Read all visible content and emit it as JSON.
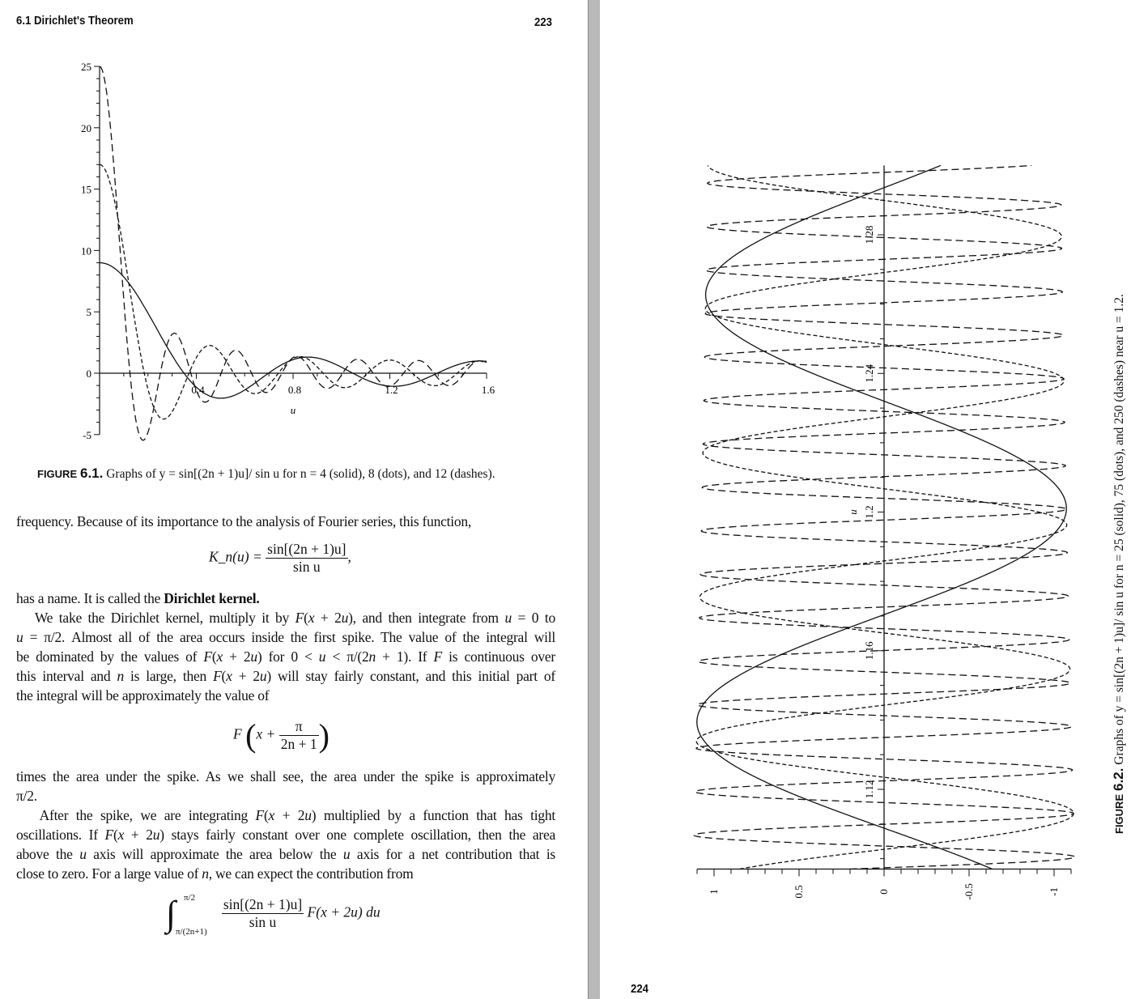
{
  "left_page": {
    "header_title": "6.1  Dirichlet's Theorem",
    "page_number": "223",
    "figure_caption": {
      "label": "FIGURE",
      "number": "6.1.",
      "text": "Graphs of y = sin[(2n + 1)u]/ sin u for n = 4 (solid), 8 (dots), and 12 (dashes)."
    },
    "lines": [
      {
        "html": "frequency. Because of its importance to the analysis of Fourier series, this function,",
        "justify": false
      },
      {
        "html": "has a name. It is called the <b>Dirichlet kernel.</b>",
        "justify": false
      },
      {
        "html": "&nbsp;&nbsp;&nbsp;We take the Dirichlet kernel, multiply it by <i>F</i>(<i>x</i> + 2<i>u</i>), and then integrate from <i>u</i> = 0 to",
        "justify": true
      },
      {
        "html": "<i>u</i> = π/2. Almost all of the area occurs inside the first spike. The value of the integral will",
        "justify": true
      },
      {
        "html": "be dominated by the values of <i>F</i>(<i>x</i> + 2<i>u</i>) for 0 &lt; <i>u</i> &lt; π/(2<i>n</i> + 1). If <i>F</i> is continuous over",
        "justify": true
      },
      {
        "html": "this interval and <i>n</i> is large, then <i>F</i>(<i>x</i> + 2<i>u</i>) will stay fairly constant, and this initial part of",
        "justify": true
      },
      {
        "html": "the integral will be approximately the value of",
        "justify": false
      },
      {
        "html": "times the area under the spike. As we shall see, the area under the spike is approximately",
        "justify": true
      },
      {
        "html": "π/2.",
        "justify": false
      },
      {
        "html": "&nbsp;&nbsp;&nbsp;After the spike, we are integrating <i>F</i>(<i>x</i> + 2<i>u</i>) multiplied by a function that has tight",
        "justify": true
      },
      {
        "html": "oscillations. If <i>F</i>(<i>x</i> + 2<i>u</i>) stays fairly constant over one complete oscillation, then the area",
        "justify": true
      },
      {
        "html": "above the <i>u</i> axis will approximate the area below the <i>u</i> axis for a net contribution that is",
        "justify": true
      },
      {
        "html": "close to zero. For a large value of <i>n</i>, we can expect the contribution from",
        "justify": false
      }
    ],
    "equations": {
      "kernel_lhs": "K_n(u) =",
      "kernel_num": "sin[(2n + 1)u]",
      "kernel_den": "sin u",
      "kernel_tail": ",",
      "F_prefix": "F",
      "F_inner": "x +",
      "F_num": "π",
      "F_den": "2n + 1",
      "int_upper": "π/2",
      "int_lower": "π/(2n+1)",
      "int_num": "sin[(2n + 1)u]",
      "int_den": "sin u",
      "int_tail": "F(x + 2u) du"
    }
  },
  "right_page": {
    "page_number": "224",
    "figure_caption": {
      "label": "FIGURE",
      "number": "6.2.",
      "text": "Graphs of y = sin[(2n + 1)u]/ sin u for n = 25 (solid), 75 (dots), and 250 (dashes) near u = 1.2."
    }
  },
  "chart_data": [
    {
      "id": "figure-6.1",
      "type": "line",
      "function": "y = sin((2n+1)u)/sin(u)",
      "xlabel": "u",
      "ylabel": "",
      "xlim": [
        0,
        1.6
      ],
      "ylim": [
        -5,
        25
      ],
      "x_ticks": [
        "0.4",
        "0.8",
        "1.2",
        "1.6"
      ],
      "x_tick_values": [
        0.4,
        0.8,
        1.2,
        1.6
      ],
      "y_ticks": [
        "25",
        "20",
        "15",
        "10",
        "5",
        "0",
        "-5"
      ],
      "y_tick_values": [
        25,
        20,
        15,
        10,
        5,
        0,
        -5
      ],
      "series": [
        {
          "n": 4,
          "style": "solid"
        },
        {
          "n": 8,
          "style": "dots"
        },
        {
          "n": 12,
          "style": "dashes"
        }
      ],
      "grid": false
    },
    {
      "id": "figure-6.2",
      "type": "line",
      "orientation": "rotated 90° (u axis vertical, y axis horizontal reversed)",
      "function": "y = sin((2n+1)u)/sin(u)",
      "xlabel": "u",
      "ylabel": "",
      "xlim": [
        1.097,
        1.3
      ],
      "ylim": [
        -1.1,
        1.1
      ],
      "x_ticks": [
        "1.12",
        "1.16",
        "1.2",
        "1.24",
        "1.28"
      ],
      "x_tick_values": [
        1.12,
        1.16,
        1.2,
        1.24,
        1.28
      ],
      "y_ticks": [
        "1",
        "0.5",
        "0",
        "-0.5",
        "-1"
      ],
      "y_tick_values": [
        1,
        0.5,
        0,
        -0.5,
        -1
      ],
      "series": [
        {
          "n": 25,
          "style": "solid"
        },
        {
          "n": 75,
          "style": "dots"
        },
        {
          "n": 250,
          "style": "dashes"
        }
      ],
      "grid": false
    }
  ]
}
